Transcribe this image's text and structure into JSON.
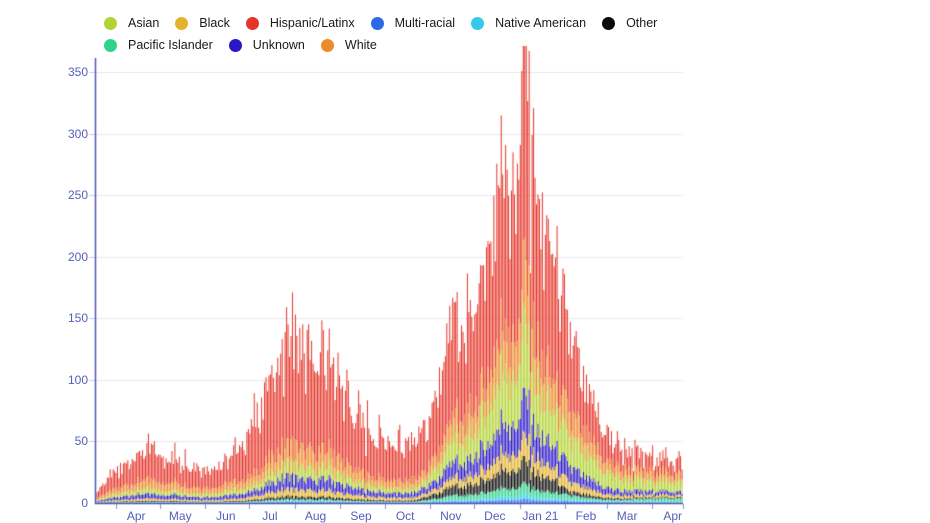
{
  "page": {
    "background": "#ffffff"
  },
  "legend": {
    "items": [
      {
        "label": "Asian",
        "color": "#b3d334"
      },
      {
        "label": "Black",
        "color": "#e3b32c"
      },
      {
        "label": "Hispanic/Latinx",
        "color": "#e5352a"
      },
      {
        "label": "Multi-racial",
        "color": "#2a6ae4"
      },
      {
        "label": "Native American",
        "color": "#33c9e8"
      },
      {
        "label": "Other",
        "color": "#0a0a0a"
      },
      {
        "label": "Pacific Islander",
        "color": "#2fd38c"
      },
      {
        "label": "Unknown",
        "color": "#2a17c8"
      },
      {
        "label": "White",
        "color": "#ec8b2a"
      }
    ]
  },
  "chart_data": {
    "type": "bar",
    "stacked": true,
    "title": "",
    "xlabel": "",
    "ylabel": "",
    "grid": true,
    "legend_position": "top",
    "ylim": [
      0,
      375
    ],
    "y_ticks": [
      0,
      50,
      100,
      150,
      200,
      250,
      300,
      350
    ],
    "x_tick_labels": [
      "Apr",
      "May",
      "Jun",
      "Jul",
      "Aug",
      "Sep",
      "Oct",
      "Nov",
      "Dec",
      "Jan 21",
      "Feb",
      "Mar",
      "Apr"
    ],
    "x_month_start_days": [
      14,
      44,
      75,
      105,
      136,
      167,
      197,
      228,
      258,
      289,
      320,
      348,
      379
    ],
    "x_total_days": 400,
    "x_note": "daily bars, day 0 = mid-March 2020, day 399 = late April 2021; series values given at keypoint days and linearly interpolated",
    "x_keypoint_days": [
      0,
      7,
      14,
      23,
      33,
      44,
      55,
      65,
      75,
      85,
      95,
      105,
      115,
      125,
      133,
      143,
      151,
      159,
      167,
      177,
      187,
      197,
      207,
      217,
      228,
      236,
      243,
      249,
      258,
      265,
      272,
      279,
      285,
      289,
      292,
      296,
      301,
      307,
      313,
      320,
      327,
      334,
      341,
      348,
      357,
      366,
      379,
      392,
      399
    ],
    "series": [
      {
        "name": "Multi-racial",
        "color": "#2a6ae4",
        "values": [
          0.05,
          0.11,
          0.14,
          0.2,
          0.25,
          0.22,
          0.23,
          0.18,
          0.17,
          0.18,
          0.23,
          0.33,
          0.51,
          0.7,
          0.8,
          0.67,
          0.65,
          0.71,
          0.55,
          0.43,
          0.35,
          0.3,
          0.28,
          0.3,
          0.56,
          0.86,
          1.3,
          1.1,
          1.4,
          1.7,
          2.1,
          2.6,
          2.2,
          2.8,
          3.3,
          2.7,
          2.1,
          1.8,
          1.7,
          1.4,
          1.1,
          0.9,
          0.7,
          0.6,
          0.5,
          0.5,
          0.5,
          0.45,
          0.4
        ]
      },
      {
        "name": "Native American",
        "color": "#33c9e8",
        "values": [
          0.06,
          0.13,
          0.17,
          0.24,
          0.3,
          0.25,
          0.27,
          0.21,
          0.2,
          0.21,
          0.27,
          0.39,
          0.6,
          0.8,
          0.9,
          0.78,
          0.76,
          0.83,
          0.64,
          0.5,
          0.41,
          0.35,
          0.32,
          0.35,
          0.7,
          1.0,
          1.6,
          1.3,
          1.7,
          2.0,
          2.5,
          3.2,
          2.6,
          3.4,
          4.1,
          3.3,
          2.6,
          2.2,
          2.0,
          1.7,
          1.3,
          1.0,
          0.9,
          0.8,
          0.75,
          0.75,
          0.8,
          0.75,
          0.7
        ]
      },
      {
        "name": "Pacific Islander",
        "color": "#2fd38c",
        "values": [
          0.1,
          0.15,
          0.2,
          0.3,
          0.3,
          0.3,
          0.3,
          0.25,
          0.2,
          0.25,
          0.3,
          0.55,
          0.85,
          1.2,
          1.3,
          1.1,
          1.1,
          1.2,
          0.9,
          0.7,
          0.6,
          0.5,
          0.45,
          0.5,
          1.6,
          2.4,
          3.7,
          3.0,
          3.9,
          4.6,
          5.8,
          7.3,
          6.0,
          7.8,
          8.0,
          6.5,
          5.3,
          4.5,
          4.2,
          3.4,
          2.7,
          2.1,
          1.6,
          1.3,
          1.2,
          1.5,
          2.3,
          2.8,
          2.3
        ]
      },
      {
        "name": "Other",
        "color": "#0a0a0a",
        "values": [
          0.2,
          0.4,
          0.5,
          0.7,
          0.8,
          0.7,
          0.8,
          0.6,
          0.6,
          0.6,
          0.8,
          1.1,
          1.7,
          2.3,
          2.6,
          2.2,
          2.2,
          2.4,
          1.8,
          1.4,
          1.2,
          1.0,
          0.9,
          1.0,
          3.4,
          5.2,
          8.1,
          6.6,
          8.5,
          10.2,
          12.7,
          16.1,
          13.2,
          17.1,
          18.5,
          15.0,
          12.9,
          11.0,
          10.2,
          3.8,
          3.0,
          2.3,
          1.8,
          1.4,
          1.1,
          1.0,
          0.9,
          0.8,
          0.8
        ]
      },
      {
        "name": "Black",
        "color": "#e3b32c",
        "values": [
          0.4,
          0.8,
          1.1,
          1.5,
          1.9,
          1.6,
          1.7,
          1.4,
          1.3,
          1.4,
          1.7,
          2.5,
          3.8,
          5.2,
          5.9,
          5.0,
          4.9,
          5.3,
          4.1,
          3.2,
          2.6,
          2.3,
          2.1,
          2.3,
          3.1,
          4.8,
          7.4,
          6.0,
          7.8,
          9.3,
          11.5,
          14.7,
          12.0,
          15.5,
          18.6,
          15.0,
          11.8,
          10.0,
          9.3,
          8.3,
          6.5,
          5.1,
          4.0,
          3.0,
          2.4,
          2.2,
          2.0,
          1.8,
          1.7
        ]
      },
      {
        "name": "Unknown",
        "color": "#2a17c8",
        "values": [
          0.7,
          1.6,
          2.2,
          3.1,
          3.8,
          3.2,
          3.4,
          2.7,
          2.5,
          2.7,
          3.4,
          4.1,
          6.4,
          8.6,
          9.8,
          8.4,
          8.1,
          8.9,
          6.9,
          5.4,
          4.4,
          3.8,
          3.5,
          3.8,
          5.6,
          8.6,
          13.3,
          10.8,
          14.0,
          16.7,
          20.7,
          26.4,
          21.6,
          27.9,
          33.5,
          27.0,
          21.2,
          18.0,
          16.7,
          13.5,
          10.6,
          8.3,
          6.5,
          5.0,
          4.0,
          3.6,
          3.2,
          3.0,
          2.7
        ]
      },
      {
        "name": "Asian",
        "color": "#b3d334",
        "values": [
          0.8,
          1.8,
          2.4,
          3.4,
          4.2,
          3.6,
          3.8,
          3.0,
          2.8,
          3.0,
          3.8,
          4.4,
          6.8,
          9.2,
          10.4,
          9.0,
          8.6,
          9.4,
          7.4,
          5.8,
          4.6,
          4.0,
          3.7,
          4.0,
          7.5,
          12.5,
          21.0,
          17.0,
          23.0,
          28.0,
          35.0,
          45.0,
          37.0,
          48.0,
          57.0,
          46.0,
          36.0,
          31.0,
          28.5,
          25.0,
          21.0,
          17.5,
          14.5,
          12.0,
          10.0,
          9.3,
          8.6,
          8.0,
          7.4
        ]
      },
      {
        "name": "White",
        "color": "#ec8b2a",
        "values": [
          1.3,
          3.0,
          4.0,
          5.8,
          7.1,
          6.1,
          6.5,
          5.1,
          4.8,
          5.1,
          6.5,
          7.0,
          10.5,
          14.5,
          16.0,
          14.0,
          13.5,
          15.0,
          11.5,
          9.0,
          7.3,
          6.3,
          5.8,
          6.3,
          8.0,
          12.5,
          19.0,
          15.5,
          20.0,
          24.0,
          30.0,
          38.0,
          31.0,
          40.0,
          48.0,
          39.0,
          30.5,
          26.0,
          24.0,
          21.0,
          17.5,
          14.5,
          11.5,
          9.0,
          7.5,
          7.0,
          6.8,
          6.4,
          6.0
        ]
      },
      {
        "name": "Hispanic/Latinx",
        "color": "#e5352a",
        "values": [
          4.5,
          10.0,
          13.5,
          19.0,
          23.5,
          20.0,
          21.0,
          17.0,
          15.5,
          17.0,
          22.0,
          34.0,
          55.0,
          75.0,
          85.0,
          72.0,
          69.0,
          76.0,
          58.0,
          45.0,
          36.0,
          31.0,
          28.0,
          30.0,
          34.0,
          52.0,
          82.0,
          64.0,
          82.0,
          96.0,
          118.0,
          148.0,
          120.0,
          158.0,
          192.0,
          152.0,
          116.0,
          97.0,
          88.0,
          68.0,
          51.0,
          38.0,
          28.0,
          20.0,
          15.0,
          13.5,
          12.0,
          11.0,
          10.0
        ]
      }
    ],
    "colors": {
      "axis": "#4c57b6",
      "grid": "#e7e7f0",
      "y_tick_mark": "#cfcfdd",
      "x_tick_mark": "#8a93cc",
      "tick_label": "#5560b8"
    }
  }
}
